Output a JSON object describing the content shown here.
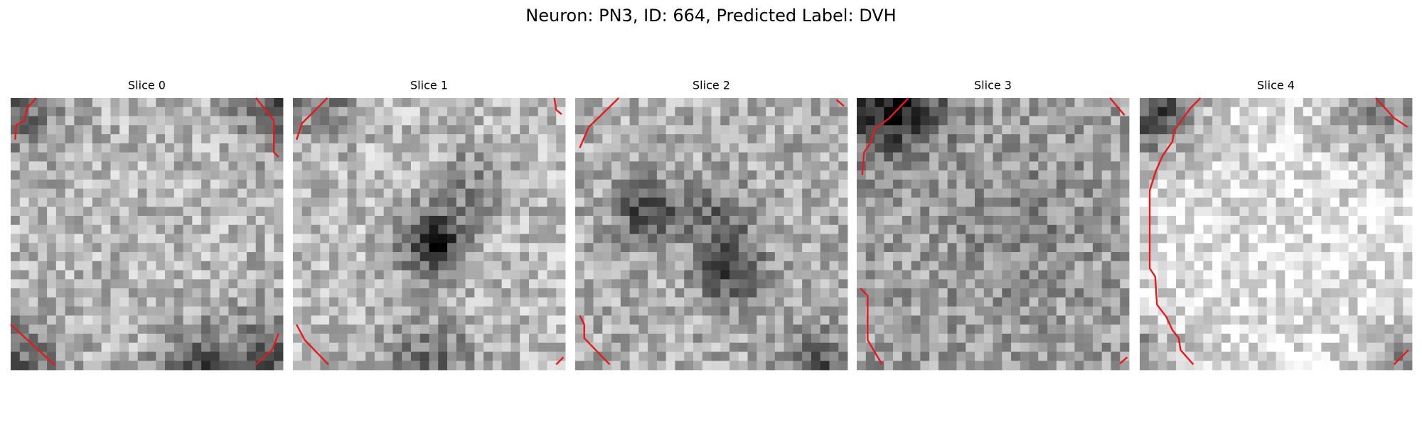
{
  "title": "Neuron: PN3, ID: 664, Predicted Label: DVH",
  "panels": [
    {
      "title": "Slice 0"
    },
    {
      "title": "Slice 1"
    },
    {
      "title": "Slice 2"
    },
    {
      "title": "Slice 3"
    },
    {
      "title": "Slice 4"
    }
  ]
}
